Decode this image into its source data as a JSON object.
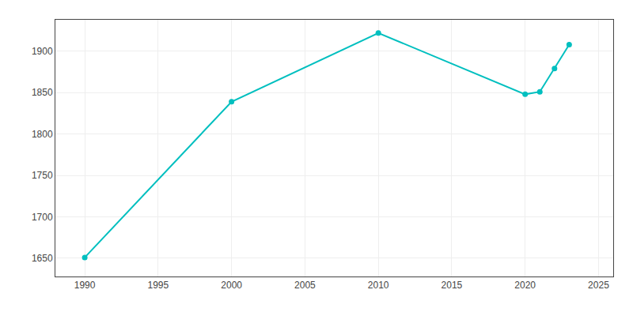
{
  "chart_data": {
    "type": "line",
    "x": [
      1990,
      2000,
      2010,
      2020,
      2021,
      2022,
      2023
    ],
    "values": [
      1651,
      1839,
      1922,
      1848,
      1851,
      1879,
      1908
    ],
    "color": "#00bfbf",
    "marker": "circle",
    "xlim": [
      1988,
      2026
    ],
    "ylim": [
      1628,
      1938
    ],
    "xticks": [
      1990,
      1995,
      2000,
      2005,
      2010,
      2015,
      2020,
      2025
    ],
    "yticks": [
      1650,
      1700,
      1750,
      1800,
      1850,
      1900
    ],
    "grid": true
  }
}
